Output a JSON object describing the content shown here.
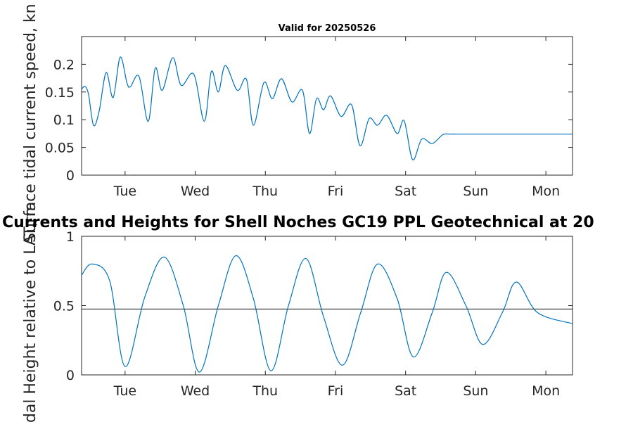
{
  "chart_data": [
    {
      "type": "line",
      "title": "Valid for 20250526",
      "ylabel": "Surface tidal current speed, kn",
      "x_ticks": [
        "Tue",
        "Wed",
        "Thu",
        "Fri",
        "Sat",
        "Sun",
        "Mon"
      ],
      "y_ticks": [
        "0",
        "0.05",
        "0.1",
        "0.15",
        "0.2"
      ],
      "y_tick_values": [
        0,
        0.05,
        0.1,
        0.15,
        0.2
      ],
      "xlim": [
        0,
        7
      ],
      "ylim": [
        0,
        0.25
      ],
      "grid": false,
      "series": [
        {
          "color": "#0072BD",
          "x": [
            0.0,
            0.05,
            0.1,
            0.17,
            0.25,
            0.35,
            0.45,
            0.55,
            0.65,
            0.7,
            0.82,
            0.95,
            1.05,
            1.15,
            1.3,
            1.42,
            1.6,
            1.75,
            1.85,
            1.95,
            2.05,
            2.22,
            2.35,
            2.45,
            2.6,
            2.72,
            2.85,
            3.0,
            3.15,
            3.25,
            3.35,
            3.45,
            3.55,
            3.7,
            3.85,
            3.97,
            4.1,
            4.22,
            4.35,
            4.5,
            4.6,
            4.72,
            4.85,
            5.0,
            5.15,
            5.25,
            5.35,
            5.5,
            5.6,
            5.75,
            5.85,
            5.97,
            6.1,
            6.22,
            6.35,
            6.45,
            6.55,
            6.65,
            6.73,
            6.85,
            7.0
          ],
          "values": [
            0.155,
            0.16,
            0.145,
            0.09,
            0.115,
            0.185,
            0.14,
            0.213,
            0.165,
            0.16,
            0.178,
            0.097,
            0.193,
            0.153,
            0.212,
            0.162,
            0.182,
            0.097,
            0.187,
            0.15,
            0.198,
            0.153,
            0.173,
            0.09,
            0.167,
            0.138,
            0.174,
            0.132,
            0.153,
            0.075,
            0.138,
            0.118,
            0.143,
            0.106,
            0.127,
            0.053,
            0.102,
            0.09,
            0.108,
            0.075,
            0.098,
            0.028,
            0.065,
            0.057,
            0.073,
            0.074,
            0.074,
            0.074,
            0.074,
            0.074,
            0.074,
            0.074,
            0.074,
            0.074,
            0.074,
            0.074,
            0.074,
            0.074,
            0.074,
            0.074,
            0.074
          ]
        }
      ]
    },
    {
      "type": "line",
      "title": "Currents and Heights for Shell Noches   GC19 PPL  Geotechnical at 20",
      "ylabel": "Tidal Height relative to LAT, m",
      "x_ticks": [
        "Tue",
        "Wed",
        "Thu",
        "Fri",
        "Sat",
        "Sun",
        "Mon"
      ],
      "y_ticks": [
        "0",
        "0.5",
        "1"
      ],
      "y_tick_values": [
        0,
        0.5,
        1
      ],
      "xlim": [
        0,
        7
      ],
      "ylim": [
        0,
        1
      ],
      "grid": false,
      "reference_line": 0.475,
      "series": [
        {
          "color": "#0072BD",
          "x": [
            0.0,
            0.15,
            0.4,
            0.62,
            0.9,
            1.18,
            1.45,
            1.68,
            1.95,
            2.2,
            2.45,
            2.7,
            2.95,
            3.2,
            3.45,
            3.72,
            3.98,
            4.22,
            4.5,
            4.73,
            5.0,
            5.2,
            5.48,
            5.72,
            6.0,
            6.2,
            6.5,
            7.0
          ],
          "values": [
            0.72,
            0.8,
            0.68,
            0.06,
            0.56,
            0.85,
            0.5,
            0.02,
            0.5,
            0.86,
            0.55,
            0.03,
            0.5,
            0.84,
            0.42,
            0.07,
            0.45,
            0.8,
            0.55,
            0.13,
            0.45,
            0.74,
            0.5,
            0.22,
            0.45,
            0.67,
            0.45,
            0.37
          ]
        }
      ]
    }
  ]
}
